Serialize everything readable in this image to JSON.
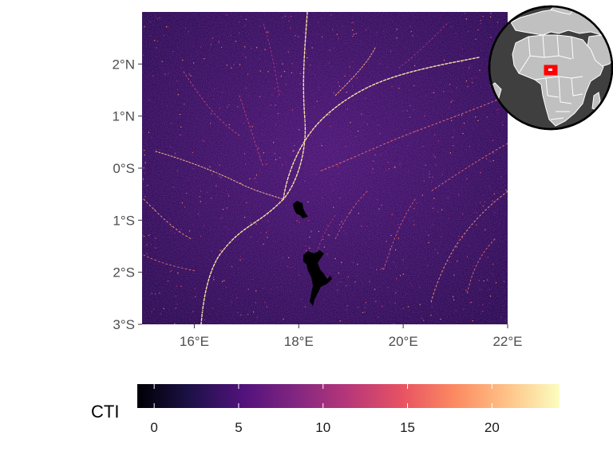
{
  "map": {
    "lon_range": [
      15,
      22
    ],
    "lat_range": [
      -3,
      3
    ],
    "x_ticks": [
      {
        "value": 16,
        "label": "16°E"
      },
      {
        "value": 18,
        "label": "18°E"
      },
      {
        "value": 20,
        "label": "20°E"
      },
      {
        "value": 22,
        "label": "22°E"
      }
    ],
    "y_ticks": [
      {
        "value": 2,
        "label": "2°N"
      },
      {
        "value": 1,
        "label": "1°N"
      },
      {
        "value": 0,
        "label": "0°S"
      },
      {
        "value": -1,
        "label": "1°S"
      },
      {
        "value": -2,
        "label": "2°S"
      },
      {
        "value": -3,
        "label": "3°S"
      }
    ],
    "raster_palette": "magma",
    "nodata_color": "#000000"
  },
  "legend": {
    "title": "CTI",
    "range": [
      -1,
      24
    ],
    "ticks": [
      {
        "value": 0,
        "label": "0"
      },
      {
        "value": 5,
        "label": "5"
      },
      {
        "value": 10,
        "label": "10"
      },
      {
        "value": 15,
        "label": "15"
      },
      {
        "value": 20,
        "label": "20"
      }
    ],
    "colors": [
      "#000004",
      "#1d1147",
      "#51127c",
      "#822681",
      "#b73779",
      "#e75263",
      "#fc8961",
      "#fec287",
      "#fcfdbf"
    ]
  },
  "inset_globe": {
    "ocean_color": "#404040",
    "land_color": "#c0c0c0",
    "border_color": "#ffffff",
    "highlight_color": "#ff0000"
  }
}
